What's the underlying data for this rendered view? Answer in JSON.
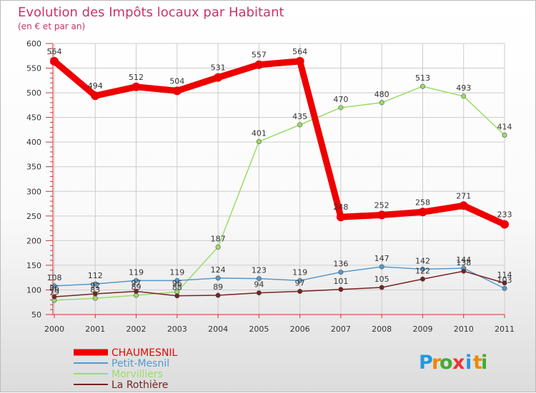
{
  "chart_data": {
    "type": "line",
    "title": "Evolution des Impôts locaux par Habitant",
    "subtitle": "(en € et par an)",
    "xlabel": "",
    "ylabel": "",
    "categories": [
      "2000",
      "2001",
      "2002",
      "2003",
      "2004",
      "2005",
      "2006",
      "2007",
      "2008",
      "2009",
      "2010",
      "2011"
    ],
    "ylim": [
      50,
      600
    ],
    "yticks": [
      50,
      100,
      150,
      200,
      250,
      300,
      350,
      400,
      450,
      500,
      550,
      600
    ],
    "grid": true,
    "legend_position": "bottom-left",
    "series": [
      {
        "name": "CHAUMESNIL",
        "color": "#ee0000",
        "values": [
          564,
          494,
          512,
          504,
          531,
          557,
          564,
          248,
          252,
          258,
          271,
          233
        ]
      },
      {
        "name": "Petit-Mesnil",
        "color": "#5599cc",
        "values": [
          108,
          112,
          119,
          119,
          124,
          123,
          119,
          136,
          147,
          142,
          144,
          103
        ]
      },
      {
        "name": "Morvilliers",
        "color": "#99dd66",
        "values": [
          79,
          83,
          89,
          96,
          187,
          401,
          435,
          470,
          480,
          513,
          493,
          414
        ]
      },
      {
        "name": "La Rothière",
        "color": "#772222",
        "values": [
          86,
          92,
          97,
          88,
          89,
          94,
          97,
          101,
          105,
          122,
          138,
          114
        ]
      }
    ]
  },
  "logo": {
    "letters": [
      "P",
      "r",
      "o",
      "x",
      "i",
      "t",
      "i"
    ],
    "colors": [
      "#2299dd",
      "#ee8800",
      "#44aa33",
      "#ee3333",
      "#2299dd",
      "#ee8800",
      "#44aa33"
    ]
  }
}
